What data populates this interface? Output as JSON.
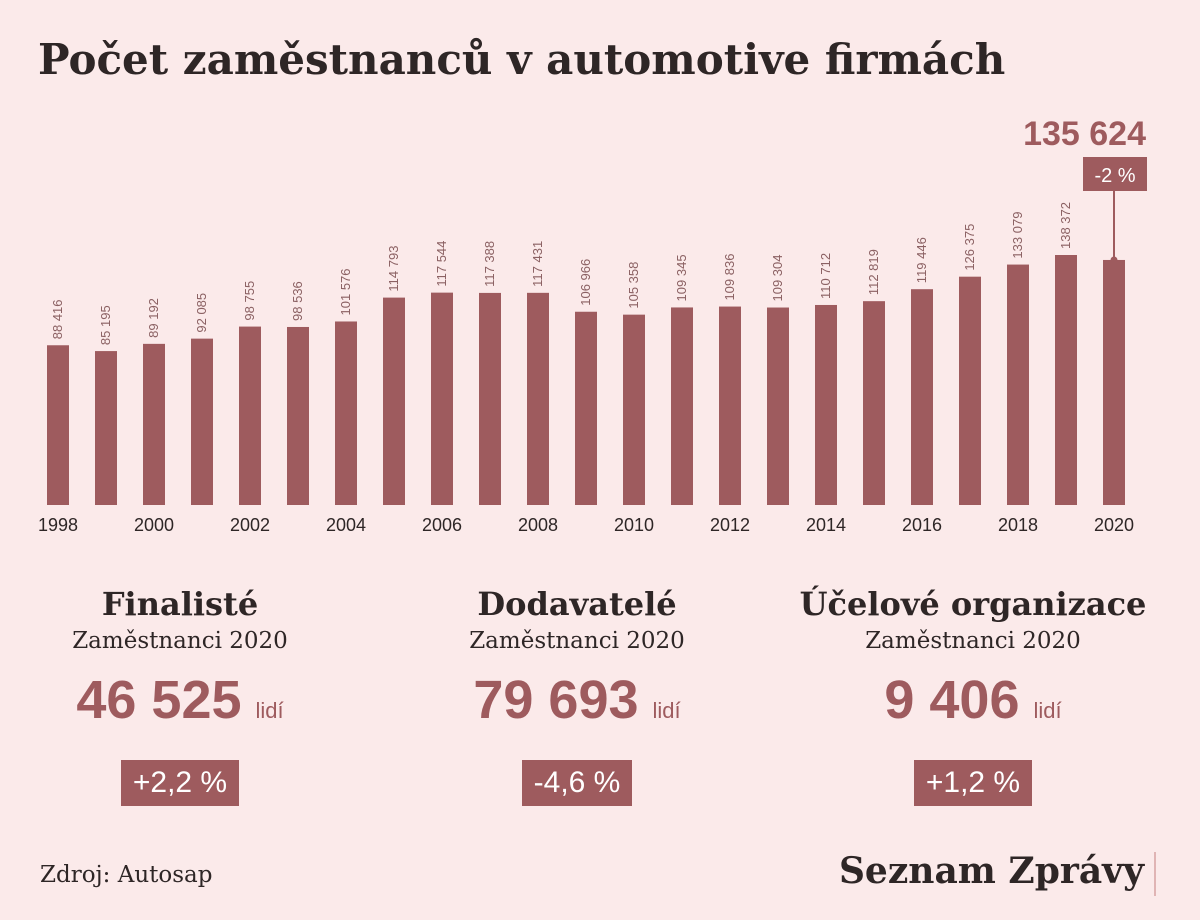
{
  "chart_data": {
    "type": "bar",
    "title": "Počet zaměstnanců v automotive firmách",
    "categories": [
      "1998",
      null,
      "2000",
      null,
      "2002",
      null,
      "2004",
      null,
      "2006",
      null,
      "2008",
      null,
      "2010",
      null,
      "2012",
      null,
      "2014",
      null,
      "2016",
      null,
      "2018",
      null,
      "2020"
    ],
    "values": [
      88416,
      85195,
      89192,
      92085,
      98755,
      98536,
      101576,
      114793,
      117544,
      117388,
      117431,
      106966,
      105358,
      109345,
      109836,
      109304,
      110712,
      112819,
      119446,
      126375,
      133079,
      138372,
      135624
    ],
    "value_labels": [
      "88 416",
      "85 195",
      "89 192",
      "92 085",
      "98 755",
      "98 536",
      "101 576",
      "114 793",
      "117 544",
      "117 388",
      "117 431",
      "106 966",
      "105 358",
      "109 345",
      "109 836",
      "109 304",
      "110 712",
      "112 819",
      "119 446",
      "126 375",
      "133 079",
      "138 372",
      "135 624"
    ],
    "color": "#9e5b5e",
    "annotation": "-2 %"
  },
  "summary": [
    {
      "title": "Finalisté",
      "subtitle": "Zaměstnanci 2020",
      "value": "46 525",
      "unit": "lidí",
      "change": "+2,2 %"
    },
    {
      "title": "Dodavatelé",
      "subtitle": "Zaměstnanci 2020",
      "value": "79 693",
      "unit": "lidí",
      "change": "-4,6 %"
    },
    {
      "title": "Účelové organizace",
      "subtitle": "Zaměstnanci 2020",
      "value": "9 406",
      "unit": "lidí",
      "change": "+1,2 %"
    }
  ],
  "source": "Zdroj: Autosap",
  "brand": "Seznam Zprávy"
}
